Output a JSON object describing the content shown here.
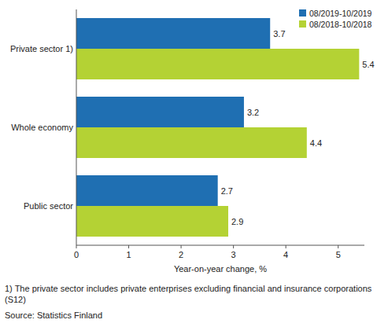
{
  "chart_data": {
    "type": "bar",
    "orientation": "horizontal",
    "categories": [
      "Private sector 1)",
      "Whole economy",
      "Public sector"
    ],
    "series": [
      {
        "name": "08/2019-10/2019",
        "color": "#1f6fb2",
        "values": [
          3.7,
          3.2,
          2.7
        ]
      },
      {
        "name": "08/2018-10/2018",
        "color": "#b4d234",
        "values": [
          5.4,
          4.4,
          2.9
        ]
      }
    ],
    "x_label": "Year-on-year change, %",
    "xlim": [
      0,
      5.5
    ],
    "xticks": [
      0,
      1,
      2,
      3,
      4,
      5
    ],
    "grid": false,
    "legend": "upper right",
    "data_labels": true,
    "footnote": "1) The private sector includes private enterprises excluding financial and insurance corporations (S12)",
    "source": "Source: Statistics Finland"
  }
}
